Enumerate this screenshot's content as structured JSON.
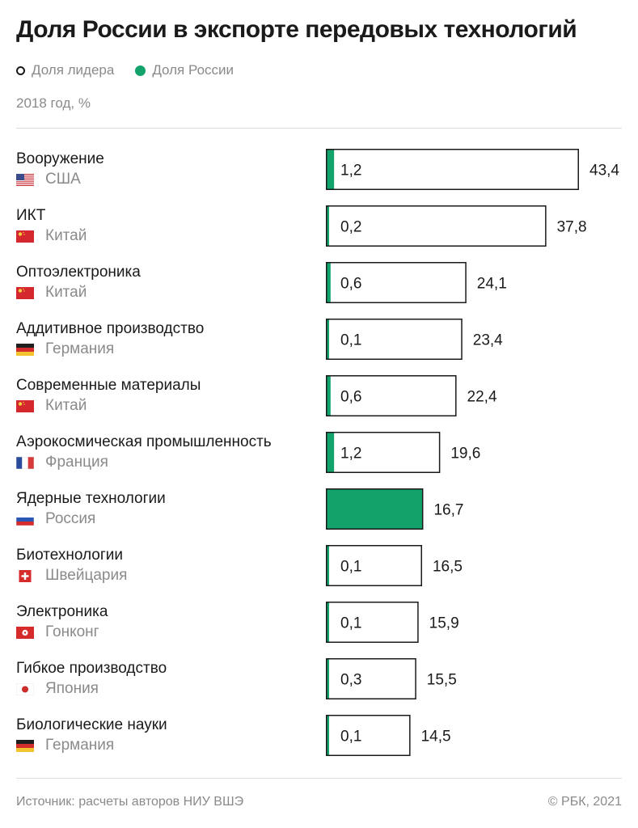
{
  "title": "Доля России в экспорте передовых технологий",
  "legend": {
    "leader": "Доля лидера",
    "russia": "Доля России"
  },
  "subtitle": "2018 год, %",
  "footer": {
    "source": "Источник: расчеты авторов НИУ ВШЭ",
    "copyright": "© РБК, 2021"
  },
  "colors": {
    "accent": "#12a36b",
    "bar_border": "#1a1a1a",
    "muted": "#8a8a8a"
  },
  "chart_data": {
    "type": "bar",
    "orientation": "horizontal",
    "series": [
      {
        "name": "Доля лидера",
        "values": [
          43.4,
          37.8,
          24.1,
          23.4,
          22.4,
          19.6,
          16.7,
          16.5,
          15.9,
          15.5,
          14.5
        ]
      },
      {
        "name": "Доля России",
        "values": [
          1.2,
          0.2,
          0.6,
          0.1,
          0.6,
          1.2,
          16.7,
          0.1,
          0.1,
          0.3,
          0.1
        ]
      }
    ],
    "rows": [
      {
        "category": "Вооружение",
        "country": "США",
        "flag": "flag-usa",
        "leader_label": "43,4",
        "russia_label": "1,2"
      },
      {
        "category": "ИКТ",
        "country": "Китай",
        "flag": "flag-china",
        "leader_label": "37,8",
        "russia_label": "0,2"
      },
      {
        "category": "Оптоэлектроника",
        "country": "Китай",
        "flag": "flag-china",
        "leader_label": "24,1",
        "russia_label": "0,6"
      },
      {
        "category": "Аддитивное производство",
        "country": "Германия",
        "flag": "flag-germany",
        "leader_label": "23,4",
        "russia_label": "0,1"
      },
      {
        "category": "Современные материалы",
        "country": "Китай",
        "flag": "flag-china",
        "leader_label": "22,4",
        "russia_label": "0,6"
      },
      {
        "category": "Аэрокосмическая промышленность",
        "country": "Франция",
        "flag": "flag-france",
        "leader_label": "19,6",
        "russia_label": "1,2"
      },
      {
        "category": "Ядерные технологии",
        "country": "Россия",
        "flag": "flag-russia",
        "leader_label": "16,7",
        "russia_label": ""
      },
      {
        "category": "Биотехнологии",
        "country": "Швейцария",
        "flag": "flag-switzerland",
        "leader_label": "16,5",
        "russia_label": "0,1"
      },
      {
        "category": "Электроника",
        "country": "Гонконг",
        "flag": "flag-hongkong",
        "leader_label": "15,9",
        "russia_label": "0,1"
      },
      {
        "category": "Гибкое производство",
        "country": "Япония",
        "flag": "flag-japan",
        "leader_label": "15,5",
        "russia_label": "0,3"
      },
      {
        "category": "Биологические науки",
        "country": "Германия",
        "flag": "flag-germany",
        "leader_label": "14,5",
        "russia_label": "0,1"
      }
    ]
  }
}
